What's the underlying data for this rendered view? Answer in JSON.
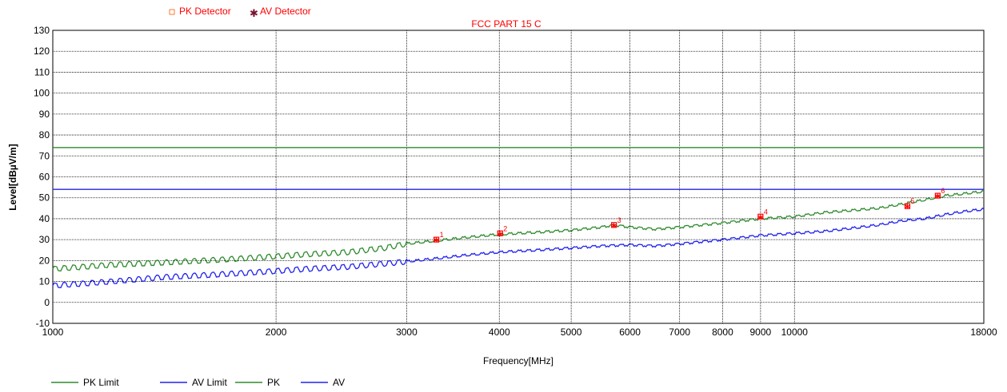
{
  "chart_data": {
    "type": "line",
    "title": "FCC PART 15 C",
    "xlabel": "Frequency[MHz]",
    "ylabel": "Level[dBµV/m]",
    "xscale": "log",
    "xlim": [
      1000,
      18000
    ],
    "ylim": [
      -10,
      130
    ],
    "x_ticks": [
      1000,
      2000,
      3000,
      4000,
      5000,
      6000,
      7000,
      8000,
      9000,
      10000,
      18000
    ],
    "x_tick_labels": [
      "1000",
      "2000",
      "3000",
      "4000",
      "5000",
      "6000",
      "7000",
      "8000",
      "9000",
      "10000",
      "18000"
    ],
    "y_ticks": [
      -10,
      0,
      10,
      20,
      30,
      40,
      50,
      60,
      70,
      80,
      90,
      100,
      110,
      120,
      130
    ],
    "y_tick_labels": [
      "-10",
      "0",
      "10",
      "20",
      "30",
      "40",
      "50",
      "60",
      "70",
      "80",
      "90",
      "100",
      "110",
      "120",
      "130"
    ],
    "grid": true,
    "legend_position": "bottom-left",
    "legend": [
      {
        "label": "PK Limit",
        "color": "#2e8b2e"
      },
      {
        "label": "AV Limit",
        "color": "#2222ee"
      },
      {
        "label": "PK",
        "color": "#2e8b2e"
      },
      {
        "label": "AV",
        "color": "#2222ee"
      }
    ],
    "detector_legend": [
      {
        "label": "PK Detector",
        "symbol": "square",
        "color": "#ff0000"
      },
      {
        "label": "AV Detector",
        "symbol": "star",
        "color": "#7a1030"
      }
    ],
    "series": [
      {
        "name": "PK Limit",
        "color": "#2e8b2e",
        "x": [
          1000,
          18000
        ],
        "y": [
          74,
          74
        ]
      },
      {
        "name": "AV Limit",
        "color": "#2222ee",
        "x": [
          1000,
          18000
        ],
        "y": [
          54,
          54
        ]
      },
      {
        "name": "PK",
        "color": "#2e8b2e",
        "x": [
          1000,
          1100,
          1200,
          1400,
          1600,
          1800,
          2000,
          2200,
          2500,
          2800,
          3000,
          3300,
          3600,
          4000,
          4500,
          5000,
          5500,
          5700,
          6000,
          6500,
          7000,
          8000,
          9000,
          10000,
          11000,
          12000,
          13000,
          14000,
          15000,
          16000,
          17000,
          18000
        ],
        "y": [
          16,
          17,
          18,
          19,
          20,
          21,
          22,
          23,
          24,
          26,
          28,
          29.5,
          31,
          32.5,
          33.5,
          34.5,
          36,
          37,
          36,
          35,
          36,
          38,
          40,
          41,
          43,
          44,
          45,
          47,
          49,
          51,
          52,
          53
        ]
      },
      {
        "name": "AV",
        "color": "#2222ee",
        "x": [
          1000,
          1100,
          1200,
          1400,
          1600,
          1800,
          2000,
          2200,
          2500,
          2800,
          3000,
          3300,
          3600,
          4000,
          4500,
          5000,
          5500,
          6000,
          6500,
          7000,
          8000,
          9000,
          10000,
          11000,
          12000,
          13000,
          14000,
          15000,
          16000,
          17000,
          18000
        ],
        "y": [
          8,
          9,
          10,
          12,
          13,
          14,
          15,
          16,
          17,
          18.5,
          19.5,
          21,
          22.5,
          24,
          25,
          26,
          27,
          27.5,
          27,
          28,
          30,
          32,
          33,
          34,
          35.5,
          37,
          39,
          40,
          42,
          43.5,
          44.5
        ]
      }
    ],
    "markers": [
      {
        "label": "1",
        "x": 3290,
        "y": 30
      },
      {
        "label": "2",
        "x": 4010,
        "y": 33
      },
      {
        "label": "3",
        "x": 5710,
        "y": 37
      },
      {
        "label": "4",
        "x": 9000,
        "y": 41
      },
      {
        "label": "5",
        "x": 14200,
        "y": 46
      },
      {
        "label": "6",
        "x": 15600,
        "y": 51
      }
    ]
  }
}
